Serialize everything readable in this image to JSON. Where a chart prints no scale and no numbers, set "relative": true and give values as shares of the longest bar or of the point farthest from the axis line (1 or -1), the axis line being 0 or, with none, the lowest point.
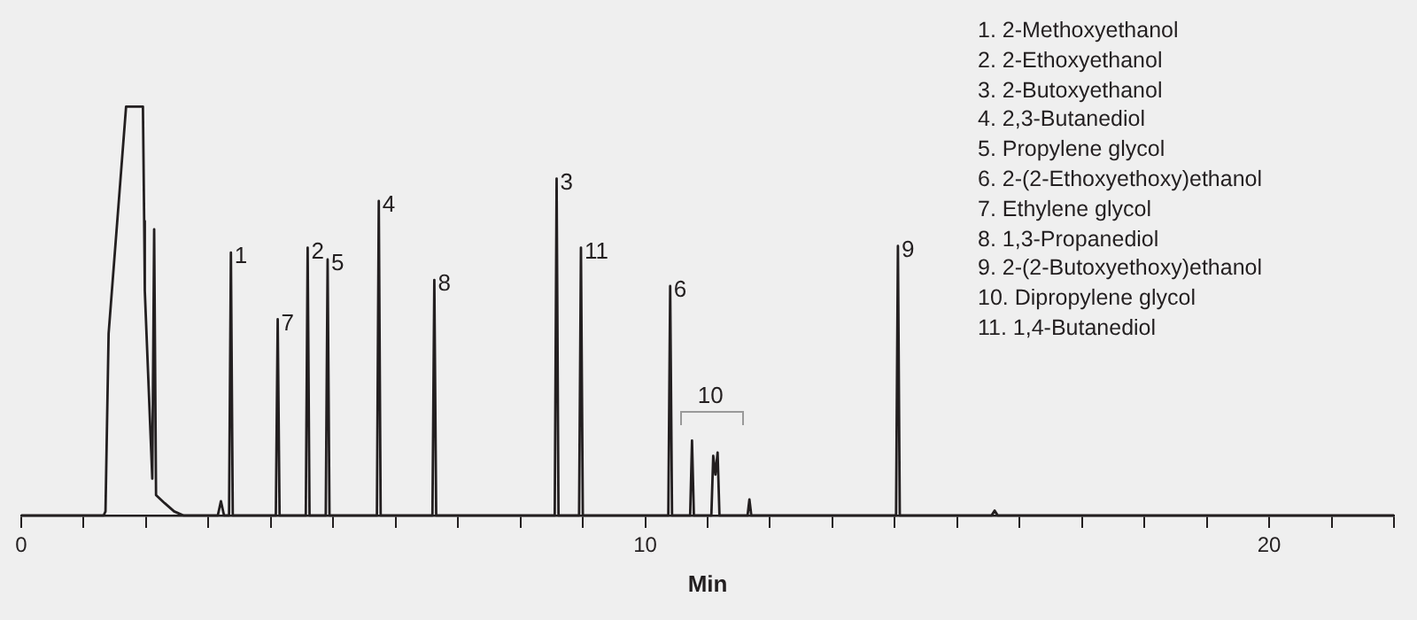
{
  "chart_data": {
    "type": "line",
    "relative": true,
    "xlabel": "Min",
    "xlim": [
      0,
      22
    ],
    "xticks": [
      0,
      {
        "value": 1,
        "label": null
      },
      {
        "value": 2,
        "label": null
      },
      {
        "value": 3,
        "label": null
      },
      {
        "value": 4,
        "label": null
      },
      {
        "value": 5,
        "label": null
      },
      {
        "value": 6,
        "label": null
      },
      {
        "value": 7,
        "label": null
      },
      {
        "value": 8,
        "label": null
      },
      {
        "value": 9,
        "label": null
      },
      10,
      {
        "value": 11,
        "label": null
      },
      {
        "value": 12,
        "label": null
      },
      {
        "value": 13,
        "label": null
      },
      {
        "value": 14,
        "label": null
      },
      {
        "value": 15,
        "label": null
      },
      {
        "value": 16,
        "label": null
      },
      {
        "value": 17,
        "label": null
      },
      {
        "value": 18,
        "label": null
      },
      {
        "value": 19,
        "label": null
      },
      20,
      {
        "value": 21,
        "label": null
      },
      {
        "value": 22,
        "label": null
      }
    ],
    "grid": false,
    "legend": false,
    "marker": "none",
    "line_style": "solid",
    "series": [
      {
        "color": "#231f20",
        "x": [
          0,
          1.32,
          1.35,
          1.4,
          1.68,
          1.95,
          1.97,
          1.98,
          2.1,
          2.13,
          2.16,
          2.3,
          2.45,
          2.6,
          3.15,
          3.2,
          3.25,
          3.33,
          3.36,
          3.39,
          4.08,
          4.11,
          4.14,
          4.56,
          4.59,
          4.62,
          4.88,
          4.91,
          4.94,
          5.7,
          5.73,
          5.76,
          6.59,
          6.62,
          6.65,
          8.55,
          8.58,
          8.61,
          8.94,
          8.97,
          9.0,
          10.37,
          10.4,
          10.43,
          10.72,
          10.75,
          10.78,
          11.06,
          11.09,
          11.125,
          11.16,
          11.19,
          11.64,
          11.67,
          11.7,
          14.02,
          14.05,
          14.08,
          15.55,
          15.6,
          15.65,
          22
        ],
        "values": [
          0,
          0,
          0.01,
          0.445,
          1,
          1,
          0.72,
          0.55,
          0.09,
          0.7,
          0.05,
          0.03,
          0.01,
          0,
          0,
          0.035,
          0,
          0,
          0.643,
          0,
          0,
          0.48,
          0,
          0,
          0.655,
          0,
          0,
          0.626,
          0,
          0,
          0.769,
          0,
          0,
          0.576,
          0,
          0,
          0.824,
          0,
          0,
          0.655,
          0,
          0,
          0.561,
          0,
          0,
          0.183,
          0,
          0,
          0.146,
          0.1,
          0.154,
          0,
          0,
          0.039,
          0,
          0,
          0.659,
          0,
          0,
          0.012,
          0,
          0
        ]
      }
    ],
    "annotations": [
      {
        "text": "1",
        "x": 3.36,
        "y": 0.643
      },
      {
        "text": "7",
        "x": 4.11,
        "y": 0.48
      },
      {
        "text": "2",
        "x": 4.59,
        "y": 0.655
      },
      {
        "text": "5",
        "x": 4.91,
        "y": 0.626
      },
      {
        "text": "4",
        "x": 5.73,
        "y": 0.769
      },
      {
        "text": "8",
        "x": 6.62,
        "y": 0.576
      },
      {
        "text": "3",
        "x": 8.58,
        "y": 0.824
      },
      {
        "text": "11",
        "x": 8.97,
        "y": 0.655
      },
      {
        "text": "6",
        "x": 10.4,
        "y": 0.561
      },
      {
        "text": "10",
        "x": 11.16,
        "y": 0.154
      },
      {
        "text": "9",
        "x": 14.05,
        "y": 0.659
      },
      "1. 2-Methoxyethanol",
      "2. 2-Ethoxyethanol",
      "3. 2-Butoxyethanol",
      "4. 2,3-Butanediol",
      "5. Propylene glycol",
      "6. 2-(2-Ethoxyethoxy)ethanol",
      "7. Ethylene glycol",
      "8. 1,3-Propanediol",
      "9. 2-(2-Butoxyethoxy)ethanol",
      "10. Dipropylene glycol",
      "11. 1,4-Butanediol"
    ]
  }
}
